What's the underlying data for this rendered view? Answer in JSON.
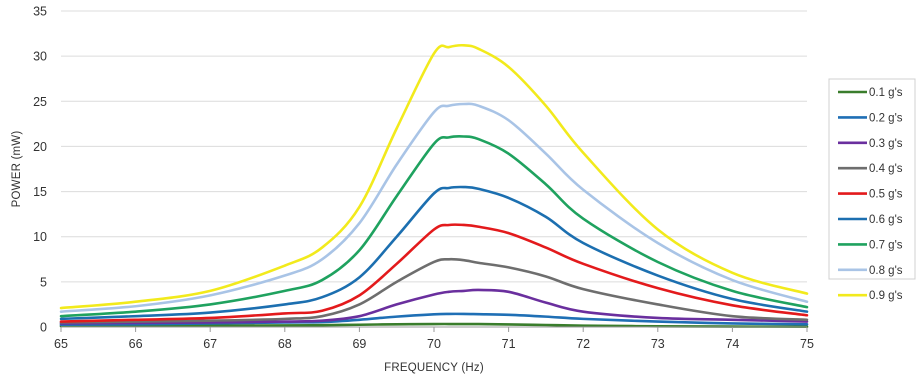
{
  "chart_data": {
    "type": "line",
    "title": "",
    "xlabel": "FREQUENCY (Hz)",
    "ylabel": "POWER (mW)",
    "xlim": [
      65,
      75
    ],
    "ylim": [
      0,
      35
    ],
    "xticks": [
      65,
      66,
      67,
      68,
      69,
      70,
      71,
      72,
      73,
      74,
      75
    ],
    "yticks": [
      0,
      5,
      10,
      15,
      20,
      25,
      30,
      35
    ],
    "grid": "horizontal",
    "legend_position": "right",
    "x": [
      65,
      66,
      67,
      68,
      68.5,
      69,
      69.5,
      70,
      70.2,
      70.4,
      70.6,
      71,
      71.5,
      72,
      73,
      74,
      75
    ],
    "series": [
      {
        "name": "0.1 g's",
        "color": "#3a7d2c",
        "values": [
          0.1,
          0.12,
          0.15,
          0.18,
          0.2,
          0.25,
          0.3,
          0.33,
          0.33,
          0.33,
          0.32,
          0.28,
          0.22,
          0.15,
          0.08,
          0.05,
          0.03
        ]
      },
      {
        "name": "0.2 g's",
        "color": "#1f6fb5",
        "values": [
          0.25,
          0.3,
          0.4,
          0.5,
          0.55,
          0.8,
          1.15,
          1.4,
          1.45,
          1.45,
          1.42,
          1.35,
          1.15,
          0.9,
          0.6,
          0.4,
          0.3
        ]
      },
      {
        "name": "0.3 g's",
        "color": "#6a2f9e",
        "values": [
          0.4,
          0.45,
          0.5,
          0.6,
          0.7,
          1.2,
          2.5,
          3.6,
          3.9,
          4.0,
          4.1,
          3.9,
          2.7,
          1.7,
          1.0,
          0.8,
          0.6
        ]
      },
      {
        "name": "0.4 g's",
        "color": "#6e6e6e",
        "values": [
          0.5,
          0.6,
          0.7,
          0.9,
          1.2,
          2.5,
          5.0,
          7.2,
          7.5,
          7.4,
          7.1,
          6.6,
          5.6,
          4.2,
          2.5,
          1.2,
          0.8
        ]
      },
      {
        "name": "0.5 g's",
        "color": "#e31a1c",
        "values": [
          0.6,
          0.8,
          1.0,
          1.5,
          1.8,
          3.5,
          7.0,
          10.8,
          11.3,
          11.3,
          11.1,
          10.4,
          8.8,
          7.0,
          4.3,
          2.4,
          1.3
        ]
      },
      {
        "name": "0.6 g's",
        "color": "#1c6fb0",
        "values": [
          0.9,
          1.2,
          1.6,
          2.5,
          3.3,
          5.5,
          10.0,
          14.8,
          15.4,
          15.5,
          15.3,
          14.3,
          12.2,
          9.3,
          5.7,
          3.1,
          1.7
        ]
      },
      {
        "name": "0.7 g's",
        "color": "#1fa25f",
        "values": [
          1.2,
          1.7,
          2.5,
          4.0,
          5.2,
          8.5,
          14.5,
          20.3,
          21.0,
          21.1,
          20.8,
          19.2,
          15.8,
          12.0,
          7.2,
          4.0,
          2.2
        ]
      },
      {
        "name": "0.8 g's",
        "color": "#a9c4e6",
        "values": [
          1.7,
          2.3,
          3.5,
          5.7,
          7.5,
          11.5,
          18.0,
          23.8,
          24.5,
          24.7,
          24.5,
          22.9,
          19.2,
          15.2,
          9.3,
          5.2,
          2.8
        ]
      },
      {
        "name": "0.9 g's",
        "color": "#f2ea1c",
        "values": [
          2.1,
          2.8,
          4.0,
          6.8,
          8.8,
          13.3,
          22.0,
          30.3,
          31.0,
          31.2,
          30.8,
          28.8,
          24.5,
          19.3,
          10.8,
          6.0,
          3.7
        ]
      }
    ]
  }
}
